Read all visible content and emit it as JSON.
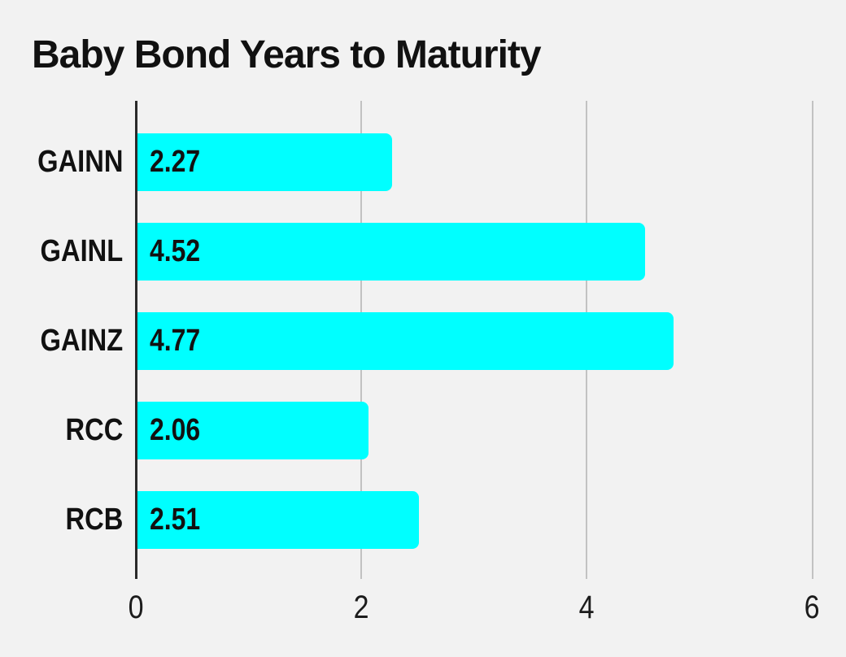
{
  "chart_data": {
    "type": "bar",
    "orientation": "horizontal",
    "title": "Baby Bond Years to Maturity",
    "categories": [
      "GAINN",
      "GAINL",
      "GAINZ",
      "RCC",
      "RCB"
    ],
    "values": [
      2.27,
      4.52,
      4.77,
      2.06,
      2.51
    ],
    "value_labels": [
      "2.27",
      "4.52",
      "4.77",
      "2.06",
      "2.51"
    ],
    "xlabel": "",
    "ylabel": "",
    "xlim": [
      0,
      6
    ],
    "xticks": [
      0,
      2,
      4,
      6
    ],
    "xtick_labels": [
      "0",
      "2",
      "4",
      "6"
    ],
    "grid": true,
    "legend_position": "none",
    "value_labels_inside_bars": true,
    "colors": {
      "background": "#f2f2f2",
      "bar": "#00ffff",
      "gridline": "#c2c2c2",
      "zero_axis_line": "#2a2a2a",
      "text": "#111111"
    }
  }
}
